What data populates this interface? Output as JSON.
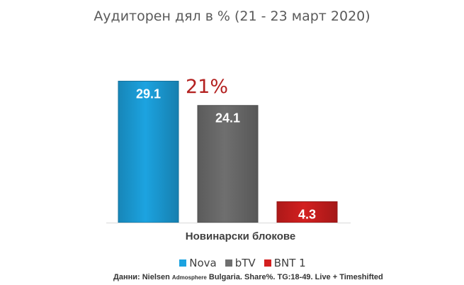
{
  "chart_data": {
    "type": "bar",
    "title": "Аудиторен дял в % (21 - 23 март 2020)",
    "categories": [
      "Новинарски блокове"
    ],
    "series": [
      {
        "name": "Nova",
        "values": [
          29.1
        ],
        "color": "#1ca3e0"
      },
      {
        "name": "bTV",
        "values": [
          24.1
        ],
        "color": "#6f6f6f"
      },
      {
        "name": "BNT 1",
        "values": [
          4.3
        ],
        "color": "#d31f1f"
      }
    ],
    "annotation": "21%",
    "ylim": [
      0,
      35
    ],
    "grid": false,
    "legend_position": "bottom"
  },
  "source": {
    "part1": "Данни: Nielsen",
    "part2": "Admosphere",
    "part3": "Bulgaria. Share%. TG:18-49. Live + Timeshifted"
  }
}
